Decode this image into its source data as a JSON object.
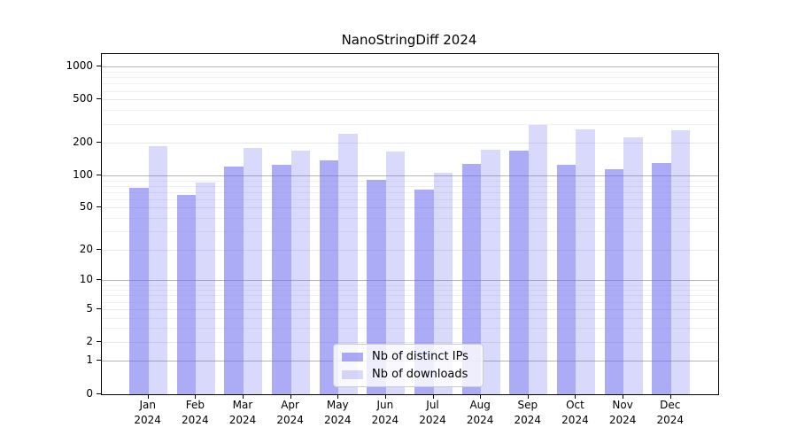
{
  "title": "NanoStringDiff 2024",
  "chart_data": {
    "type": "bar",
    "title": "NanoStringDiff 2024",
    "categories": [
      "Jan 2024",
      "Feb 2024",
      "Mar 2024",
      "Apr 2024",
      "May 2024",
      "Jun 2024",
      "Jul 2024",
      "Aug 2024",
      "Sep 2024",
      "Oct 2024",
      "Nov 2024",
      "Dec 2024"
    ],
    "series": [
      {
        "name": "Nb of distinct IPs",
        "color": "rgba(102,102,238,0.55)",
        "values": [
          77,
          66,
          120,
          125,
          137,
          91,
          74,
          128,
          170,
          125,
          114,
          131
        ]
      },
      {
        "name": "Nb of downloads",
        "color": "rgba(102,102,238,0.25)",
        "values": [
          187,
          86,
          180,
          171,
          242,
          165,
          106,
          174,
          290,
          266,
          225,
          263
        ]
      }
    ],
    "xlabel": "",
    "ylabel": "",
    "y_scale": "log1p",
    "y_tick_values": [
      0,
      1,
      2,
      5,
      10,
      20,
      50,
      100,
      200,
      500,
      1000
    ],
    "y_tick_labels": [
      "0",
      "1",
      "2",
      "5",
      "10",
      "20",
      "50",
      "100",
      "200",
      "500",
      "1000"
    ],
    "y_minor_gridline_values": [
      3,
      4,
      6,
      7,
      8,
      9,
      30,
      40,
      60,
      70,
      80,
      90,
      300,
      400,
      600,
      700,
      800,
      900
    ],
    "ylim": [
      0,
      1310
    ],
    "grid": true,
    "legend_position": "bottom-center"
  },
  "legend": {
    "items": [
      {
        "label": "Nb of distinct IPs",
        "color": "rgba(102,102,238,0.55)"
      },
      {
        "label": "Nb of downloads",
        "color": "rgba(102,102,238,0.25)"
      }
    ]
  },
  "colors": {
    "bar_ips": "rgba(102,102,238,0.55)",
    "bar_downloads": "rgba(102,102,238,0.25)",
    "grid_major": "#b5b5b5",
    "grid_labeled": "#e7e7ef",
    "grid_minor": "#f1f1f1",
    "axis": "#000000",
    "background": "#ffffff"
  }
}
